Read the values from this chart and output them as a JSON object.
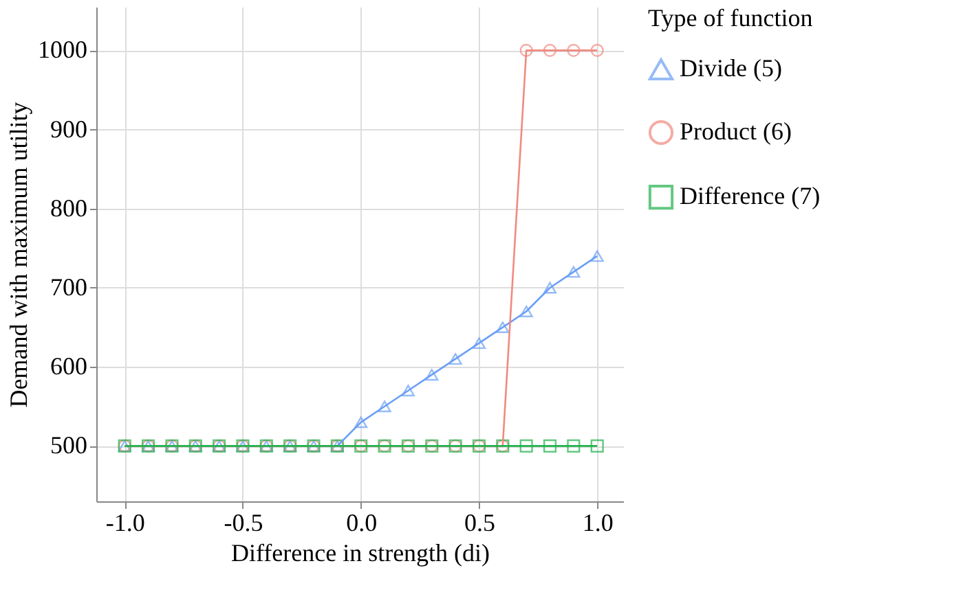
{
  "chart_data": {
    "type": "line",
    "xlabel": "Difference in strength (di)",
    "ylabel": "Demand with maximum utility",
    "legend_title": "Type of function",
    "legend": "right",
    "grid": true,
    "line_style": "solid",
    "x": [
      -1.0,
      -0.9,
      -0.8,
      -0.7,
      -0.6,
      -0.5,
      -0.4,
      -0.3,
      -0.2,
      -0.1,
      0.0,
      0.1,
      0.2,
      0.3,
      0.4,
      0.5,
      0.6,
      0.7,
      0.8,
      0.9,
      1.0
    ],
    "xlim": [
      -1.12,
      1.11
    ],
    "xticks": [
      {
        "value": -1.0,
        "label": "-1.0"
      },
      {
        "value": -0.5,
        "label": "-0.5"
      },
      {
        "value": 0.0,
        "label": "0.0"
      },
      {
        "value": 0.5,
        "label": "0.5"
      },
      {
        "value": 1.0,
        "label": "1.0"
      }
    ],
    "ylim": [
      430,
      1055
    ],
    "yticks": [
      500,
      600,
      700,
      800,
      900,
      1000
    ],
    "series": [
      {
        "name": "Divide (5)",
        "color": "#6a9ff5",
        "marker": "triangle",
        "values": [
          500,
          500,
          500,
          500,
          500,
          500,
          500,
          500,
          500,
          500,
          530,
          550,
          570,
          590,
          610,
          630,
          650,
          670,
          700,
          720,
          740
        ]
      },
      {
        "name": "Product (6)",
        "color": "#f08a80",
        "marker": "circle",
        "values": [
          500,
          500,
          500,
          500,
          500,
          500,
          500,
          500,
          500,
          500,
          500,
          500,
          500,
          500,
          500,
          500,
          500,
          1000,
          1000,
          1000,
          1000
        ]
      },
      {
        "name": "Difference (7)",
        "color": "#22b24c",
        "marker": "square",
        "values": [
          500,
          500,
          500,
          500,
          500,
          500,
          500,
          500,
          500,
          500,
          500,
          500,
          500,
          500,
          500,
          500,
          500,
          500,
          500,
          500,
          500
        ]
      }
    ]
  }
}
